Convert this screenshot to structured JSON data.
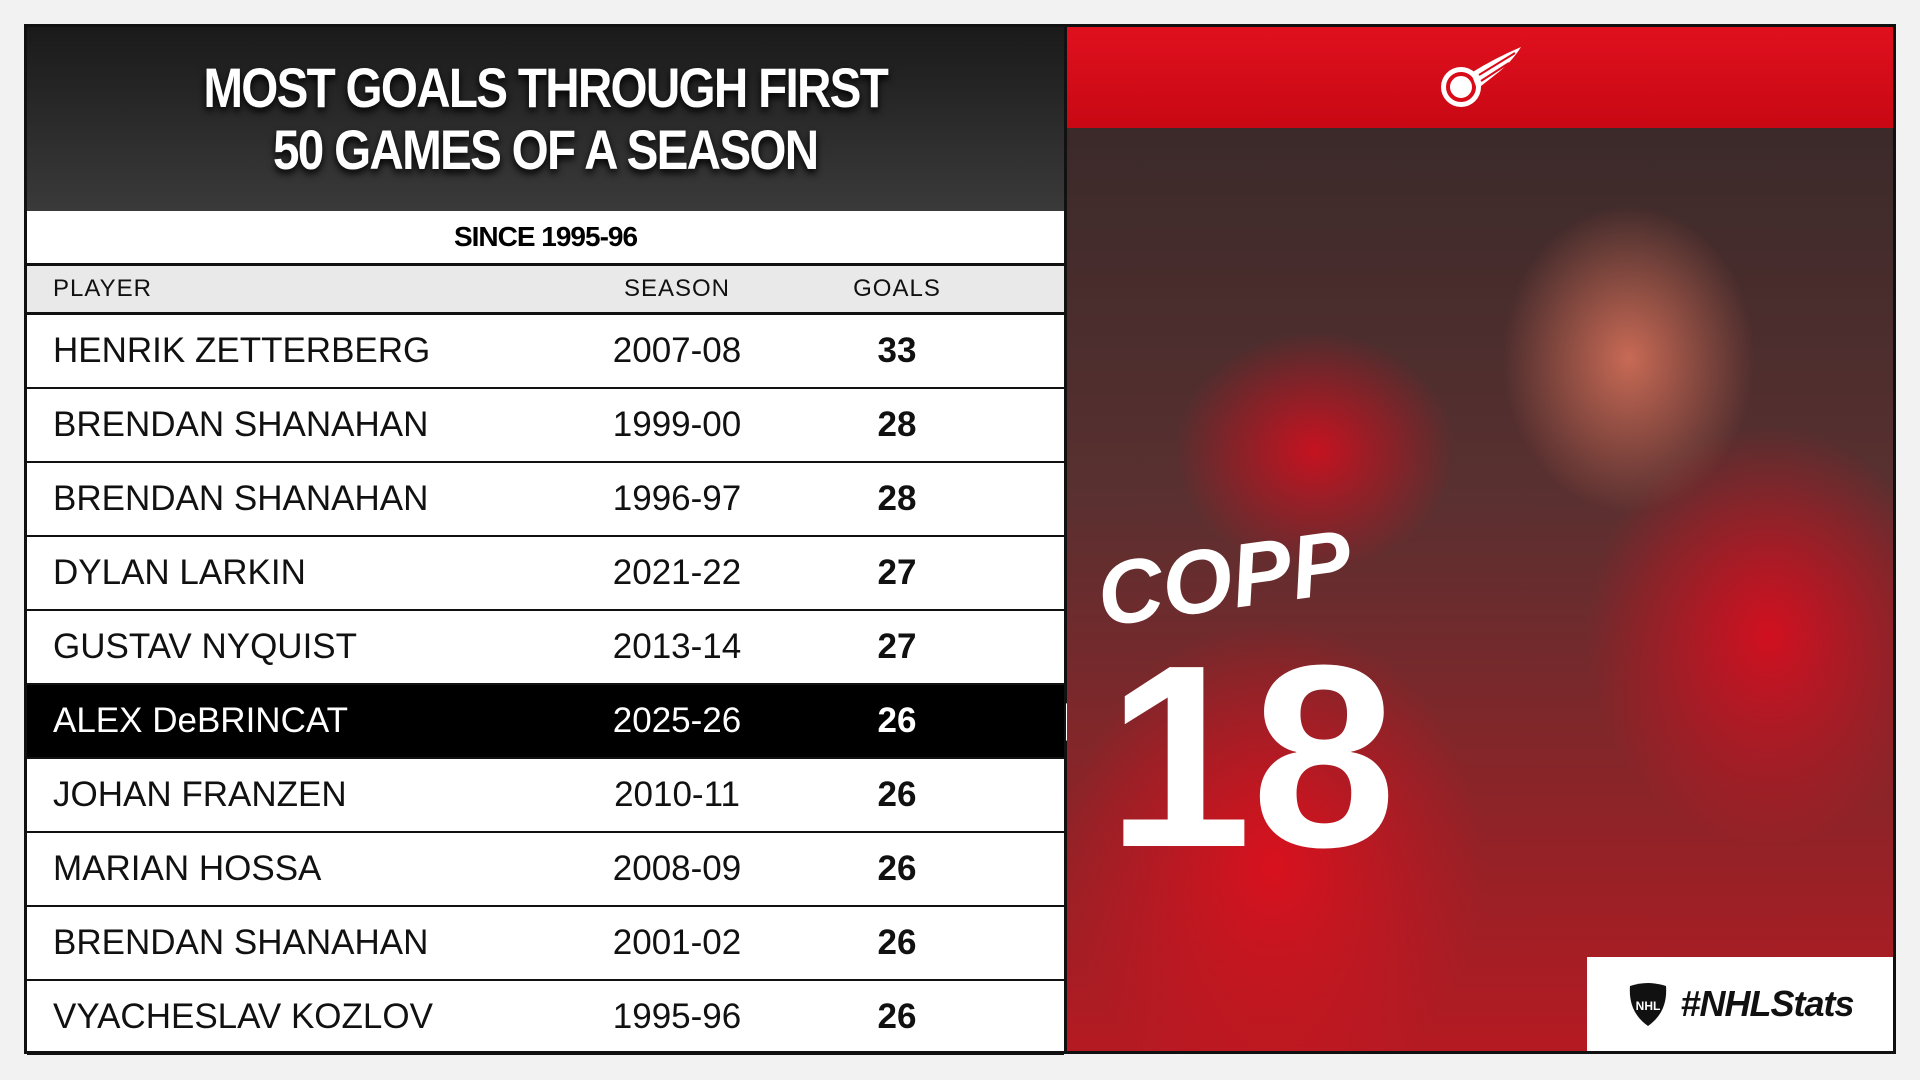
{
  "title_line1": "MOST GOALS THROUGH FIRST",
  "title_line2": "50 GAMES OF A SEASON",
  "subtitle": "SINCE 1995-96",
  "columns": [
    "PLAYER",
    "SEASON",
    "GOALS"
  ],
  "rows": [
    {
      "player": "HENRIK ZETTERBERG",
      "season": "2007-08",
      "goals": "33"
    },
    {
      "player": "BRENDAN SHANAHAN",
      "season": "1999-00",
      "goals": "28"
    },
    {
      "player": "BRENDAN SHANAHAN",
      "season": "1996-97",
      "goals": "28"
    },
    {
      "player": "DYLAN LARKIN",
      "season": "2021-22",
      "goals": "27"
    },
    {
      "player": "GUSTAV NYQUIST",
      "season": "2013-14",
      "goals": "27"
    },
    {
      "player": "ALEX DeBRINCAT",
      "season": "2025-26",
      "goals": "26",
      "highlight": true
    },
    {
      "player": "JOHAN FRANZEN",
      "season": "2010-11",
      "goals": "26"
    },
    {
      "player": "MARIAN HOSSA",
      "season": "2008-09",
      "goals": "26"
    },
    {
      "player": "BRENDAN SHANAHAN",
      "season": "2001-02",
      "goals": "26"
    },
    {
      "player": "VYACHESLAV KOZLOV",
      "season": "1995-96",
      "goals": "26"
    }
  ],
  "photo": {
    "jersey_name": "COPP",
    "jersey_number": "18"
  },
  "hashtag": "#NHLStats",
  "colors": {
    "red": "#d90b18",
    "highlight": "#000000"
  }
}
